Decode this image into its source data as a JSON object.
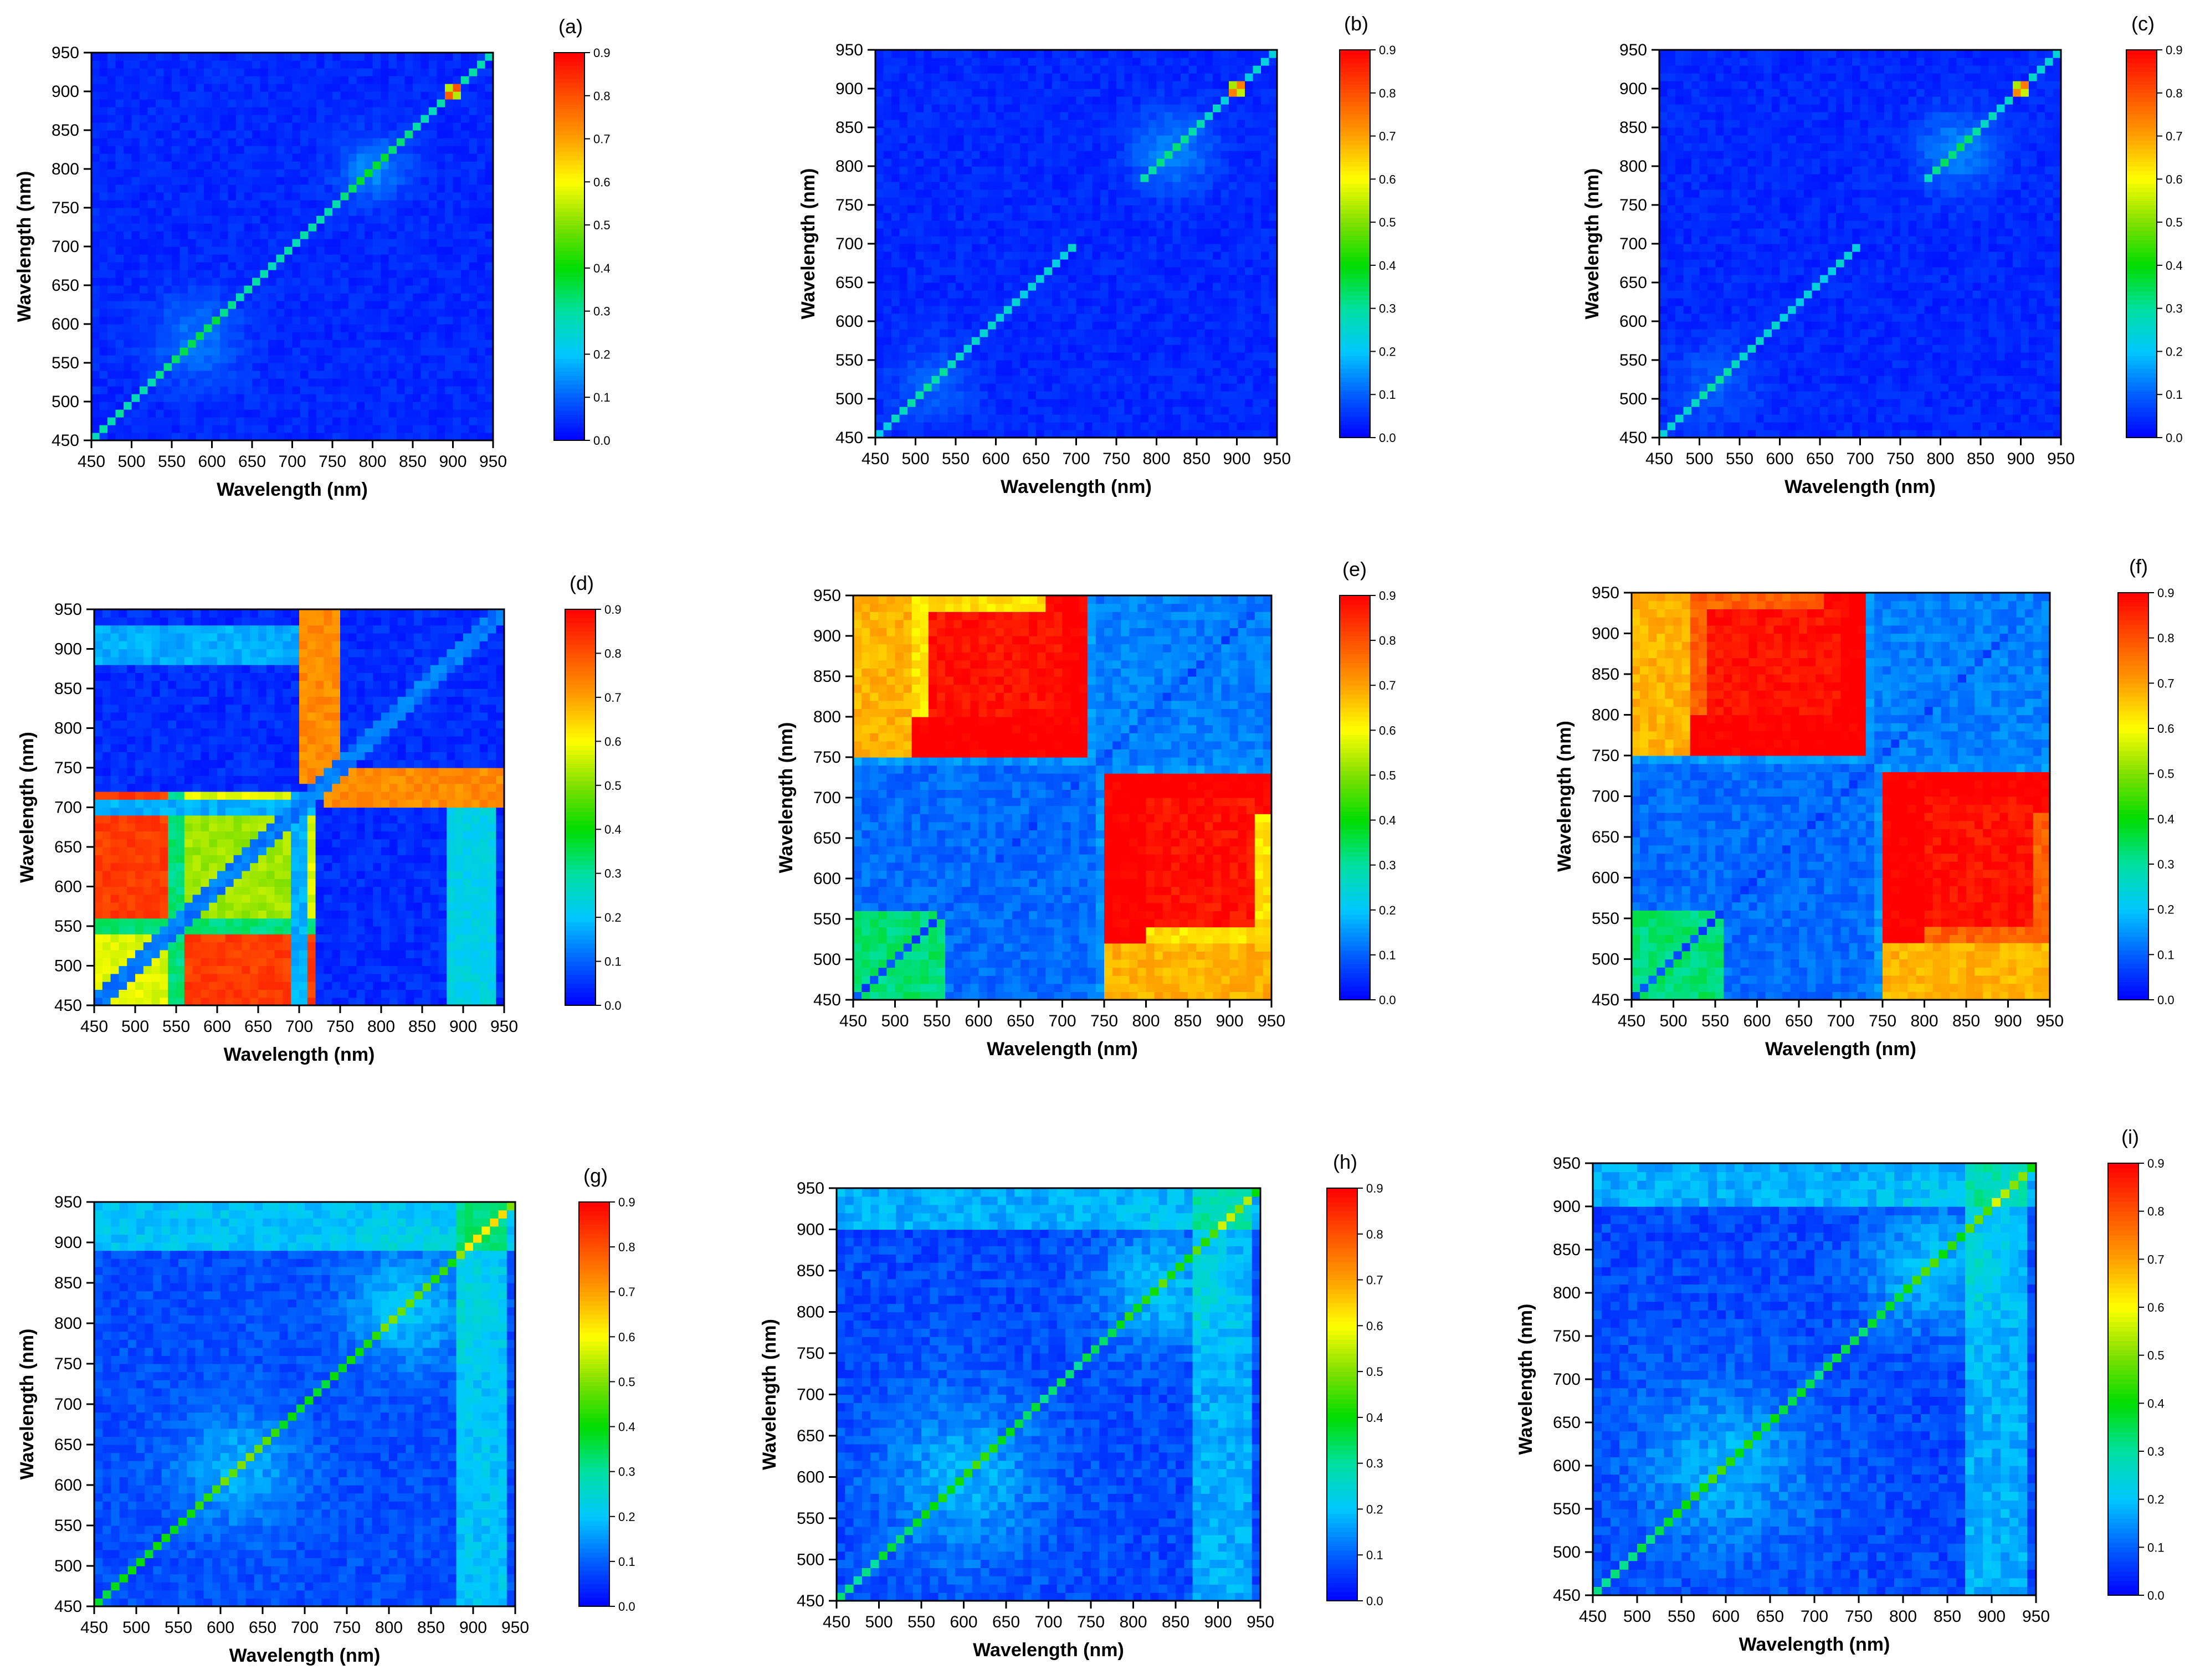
{
  "chart_data": [
    {
      "type": "heatmap",
      "label": "(a)",
      "pattern": "a",
      "xlabel": "Wavelength (nm)",
      "ylabel": "Wavelength (nm)",
      "xlim": [
        450,
        950
      ],
      "ylim": [
        450,
        950
      ],
      "ticks": [
        450,
        500,
        550,
        600,
        650,
        700,
        750,
        800,
        850,
        900,
        950
      ],
      "colorbar": {
        "min": 0.0,
        "max": 0.9,
        "ticks": [
          "0.0",
          "0.1",
          "0.2",
          "0.3",
          "0.4",
          "0.5",
          "0.6",
          "0.7",
          "0.8",
          "0.9"
        ]
      }
    },
    {
      "type": "heatmap",
      "label": "(b)",
      "pattern": "b",
      "xlabel": "Wavelength (nm)",
      "ylabel": "Wavelength (nm)",
      "xlim": [
        450,
        950
      ],
      "ylim": [
        450,
        950
      ],
      "ticks": [
        450,
        500,
        550,
        600,
        650,
        700,
        750,
        800,
        850,
        900,
        950
      ],
      "colorbar": {
        "min": 0.0,
        "max": 0.9,
        "ticks": [
          "0.0",
          "0.1",
          "0.2",
          "0.3",
          "0.4",
          "0.5",
          "0.6",
          "0.7",
          "0.8",
          "0.9"
        ]
      }
    },
    {
      "type": "heatmap",
      "label": "(c)",
      "pattern": "b",
      "xlabel": "Wavelength (nm)",
      "ylabel": "Wavelength (nm)",
      "xlim": [
        450,
        950
      ],
      "ylim": [
        450,
        950
      ],
      "ticks": [
        450,
        500,
        550,
        600,
        650,
        700,
        750,
        800,
        850,
        900,
        950
      ],
      "colorbar": {
        "min": 0.0,
        "max": 0.9,
        "ticks": [
          "0.0",
          "0.1",
          "0.2",
          "0.3",
          "0.4",
          "0.5",
          "0.6",
          "0.7",
          "0.8",
          "0.9"
        ]
      }
    },
    {
      "type": "heatmap",
      "label": "(d)",
      "pattern": "d",
      "xlabel": "Wavelength (nm)",
      "ylabel": "Wavelength (nm)",
      "xlim": [
        450,
        950
      ],
      "ylim": [
        450,
        950
      ],
      "ticks": [
        450,
        500,
        550,
        600,
        650,
        700,
        750,
        800,
        850,
        900,
        950
      ],
      "colorbar": {
        "min": 0.0,
        "max": 0.9,
        "ticks": [
          "0.0",
          "0.1",
          "0.2",
          "0.3",
          "0.4",
          "0.5",
          "0.6",
          "0.7",
          "0.8",
          "0.9"
        ]
      }
    },
    {
      "type": "heatmap",
      "label": "(e)",
      "pattern": "e",
      "xlabel": "Wavelength (nm)",
      "ylabel": "Wavelength (nm)",
      "xlim": [
        450,
        950
      ],
      "ylim": [
        450,
        950
      ],
      "ticks": [
        450,
        500,
        550,
        600,
        650,
        700,
        750,
        800,
        850,
        900,
        950
      ],
      "colorbar": {
        "min": 0.0,
        "max": 0.9,
        "ticks": [
          "0.0",
          "0.1",
          "0.2",
          "0.3",
          "0.4",
          "0.5",
          "0.6",
          "0.7",
          "0.8",
          "0.9"
        ]
      }
    },
    {
      "type": "heatmap",
      "label": "(f)",
      "pattern": "f",
      "xlabel": "Wavelength (nm)",
      "ylabel": "Wavelength (nm)",
      "xlim": [
        450,
        950
      ],
      "ylim": [
        450,
        950
      ],
      "ticks": [
        450,
        500,
        550,
        600,
        650,
        700,
        750,
        800,
        850,
        900,
        950
      ],
      "colorbar": {
        "min": 0.0,
        "max": 0.9,
        "ticks": [
          "0.0",
          "0.1",
          "0.2",
          "0.3",
          "0.4",
          "0.5",
          "0.6",
          "0.7",
          "0.8",
          "0.9"
        ]
      }
    },
    {
      "type": "heatmap",
      "label": "(g)",
      "pattern": "g",
      "xlabel": "Wavelength (nm)",
      "ylabel": "Wavelength (nm)",
      "xlim": [
        450,
        950
      ],
      "ylim": [
        450,
        950
      ],
      "ticks": [
        450,
        500,
        550,
        600,
        650,
        700,
        750,
        800,
        850,
        900,
        950
      ],
      "colorbar": {
        "min": 0.0,
        "max": 0.9,
        "ticks": [
          "0.0",
          "0.1",
          "0.2",
          "0.3",
          "0.4",
          "0.5",
          "0.6",
          "0.7",
          "0.8",
          "0.9"
        ]
      }
    },
    {
      "type": "heatmap",
      "label": "(h)",
      "pattern": "h",
      "xlabel": "Wavelength (nm)",
      "ylabel": "Wavelength (nm)",
      "xlim": [
        450,
        950
      ],
      "ylim": [
        450,
        950
      ],
      "ticks": [
        450,
        500,
        550,
        600,
        650,
        700,
        750,
        800,
        850,
        900,
        950
      ],
      "colorbar": {
        "min": 0.0,
        "max": 0.9,
        "ticks": [
          "0.0",
          "0.1",
          "0.2",
          "0.3",
          "0.4",
          "0.5",
          "0.6",
          "0.7",
          "0.8",
          "0.9"
        ]
      }
    },
    {
      "type": "heatmap",
      "label": "(i)",
      "pattern": "h",
      "xlabel": "Wavelength (nm)",
      "ylabel": "Wavelength (nm)",
      "xlim": [
        450,
        950
      ],
      "ylim": [
        450,
        950
      ],
      "ticks": [
        450,
        500,
        550,
        600,
        650,
        700,
        750,
        800,
        850,
        900,
        950
      ],
      "colorbar": {
        "min": 0.0,
        "max": 0.9,
        "ticks": [
          "0.0",
          "0.1",
          "0.2",
          "0.3",
          "0.4",
          "0.5",
          "0.6",
          "0.7",
          "0.8",
          "0.9"
        ]
      }
    }
  ],
  "colormap": [
    "#0000ff",
    "#0060ff",
    "#00c8ff",
    "#00e0a0",
    "#00dd00",
    "#80e000",
    "#ffff00",
    "#ffa000",
    "#ff5000",
    "#ff0000"
  ]
}
